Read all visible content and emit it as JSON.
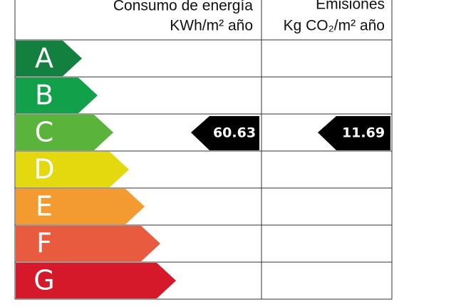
{
  "header": {
    "energy_title": "Consumo de energía",
    "energy_units": "KWh/m² año",
    "emissions_title": "Emisiones",
    "emissions_units": "Kg CO₂/m² año"
  },
  "rows": [
    {
      "letter": "A",
      "color": "#13803f"
    },
    {
      "letter": "B",
      "color": "#12a04a"
    },
    {
      "letter": "C",
      "color": "#5ab33a",
      "energy": 60.63,
      "emissions": 11.69
    },
    {
      "letter": "D",
      "color": "#e3d90e"
    },
    {
      "letter": "E",
      "color": "#f39a30"
    },
    {
      "letter": "F",
      "color": "#e85b3f"
    },
    {
      "letter": "G",
      "color": "#d5182a"
    }
  ]
}
